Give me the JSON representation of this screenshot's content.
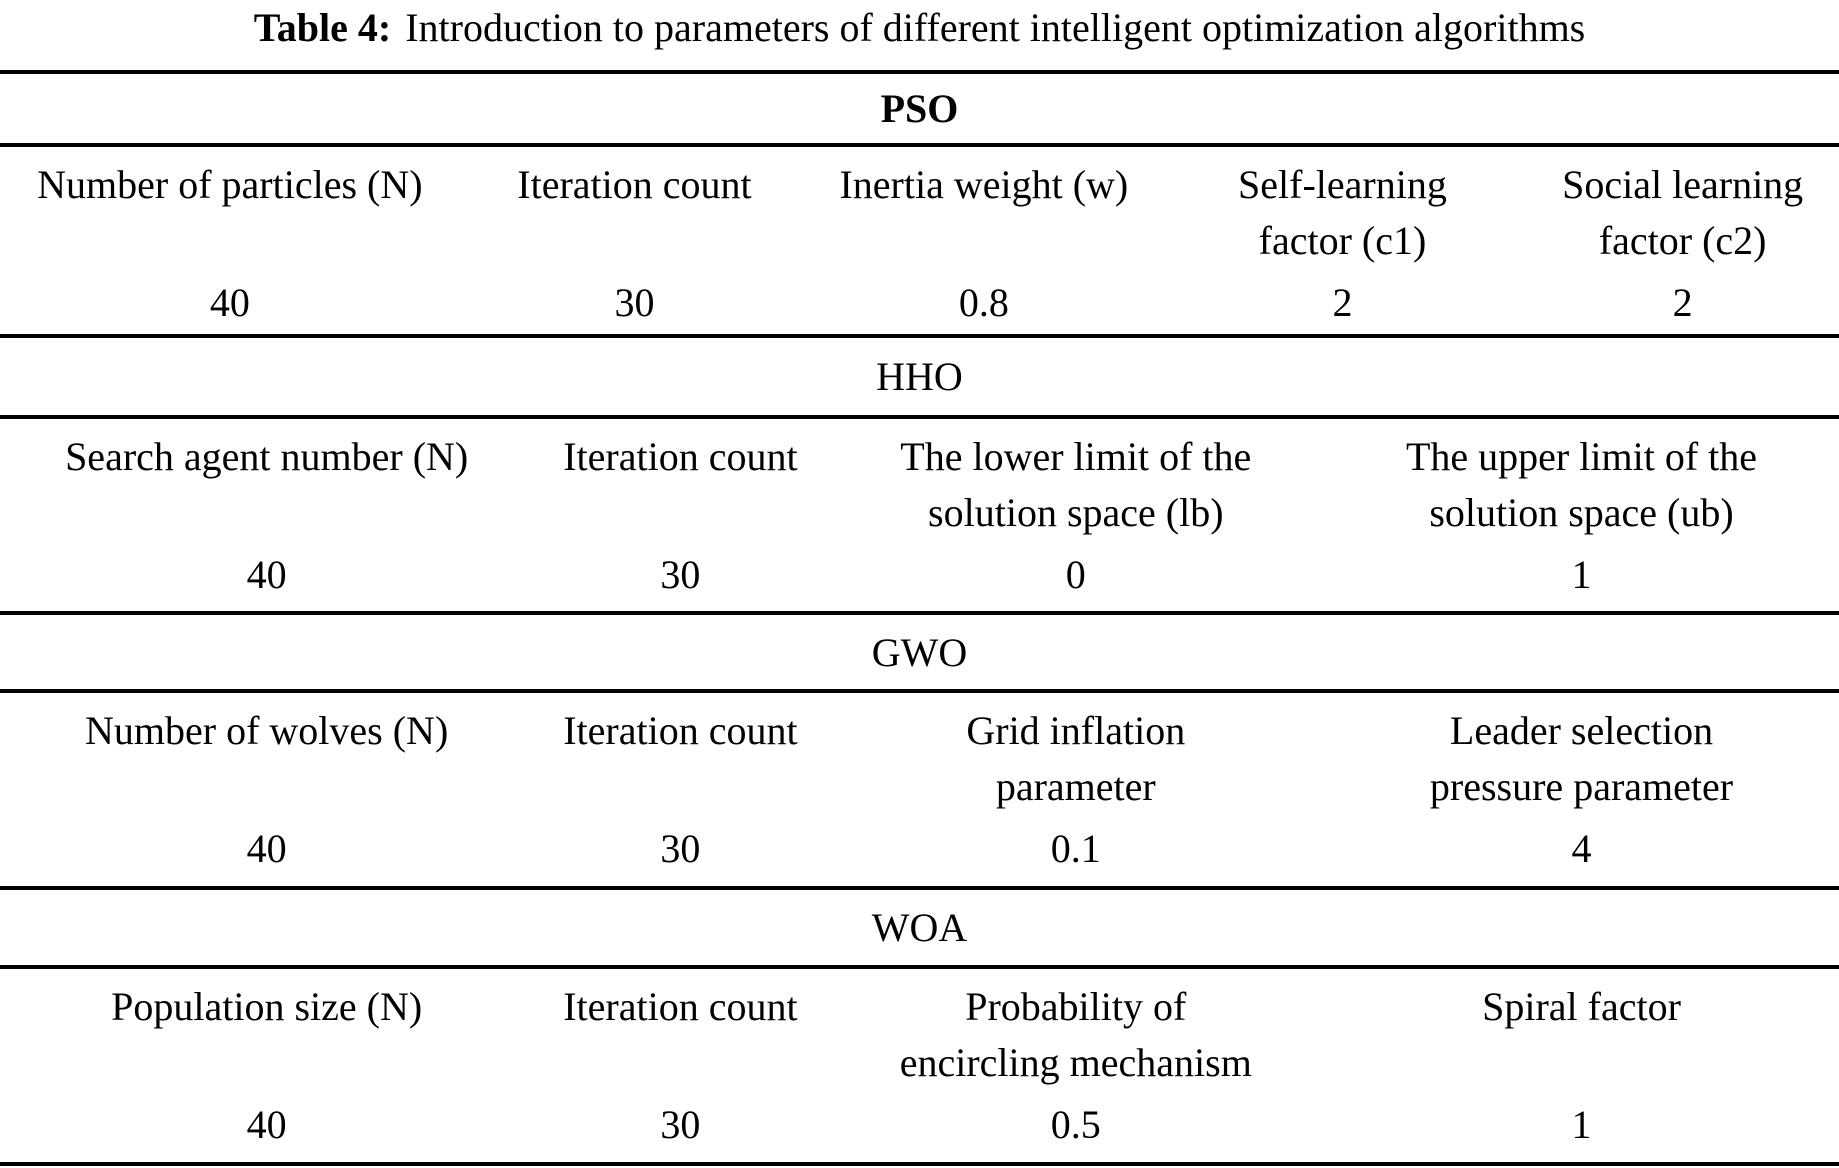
{
  "title": {
    "label": "Table 4:",
    "text": "Introduction to parameters of different intelligent optimization algorithms"
  },
  "colors": {
    "text": "#000000",
    "background": "#ffffff",
    "rule": "#000000"
  },
  "sections": [
    {
      "name": "PSO",
      "columns": [
        "Number of particles (N)",
        "Iteration count",
        "Inertia weight (w)",
        "Self-learning\nfactor (c1)",
        "Social learning\nfactor (c2)"
      ],
      "values": [
        "40",
        "30",
        "0.8",
        "2",
        "2"
      ]
    },
    {
      "name": "HHO",
      "columns": [
        "Search agent number (N)",
        "Iteration count",
        "The lower limit of the\nsolution space (lb)",
        "The upper limit of the\nsolution space (ub)"
      ],
      "values": [
        "40",
        "30",
        "0",
        "1"
      ]
    },
    {
      "name": "GWO",
      "columns": [
        "Number of wolves (N)",
        "Iteration count",
        "Grid inflation\nparameter",
        "Leader selection\npressure parameter"
      ],
      "values": [
        "40",
        "30",
        "0.1",
        "4"
      ]
    },
    {
      "name": "WOA",
      "columns": [
        "Population size (N)",
        "Iteration count",
        "Probability of\nencircling mechanism",
        "Spiral factor"
      ],
      "values": [
        "40",
        "30",
        "0.5",
        "1"
      ]
    }
  ]
}
